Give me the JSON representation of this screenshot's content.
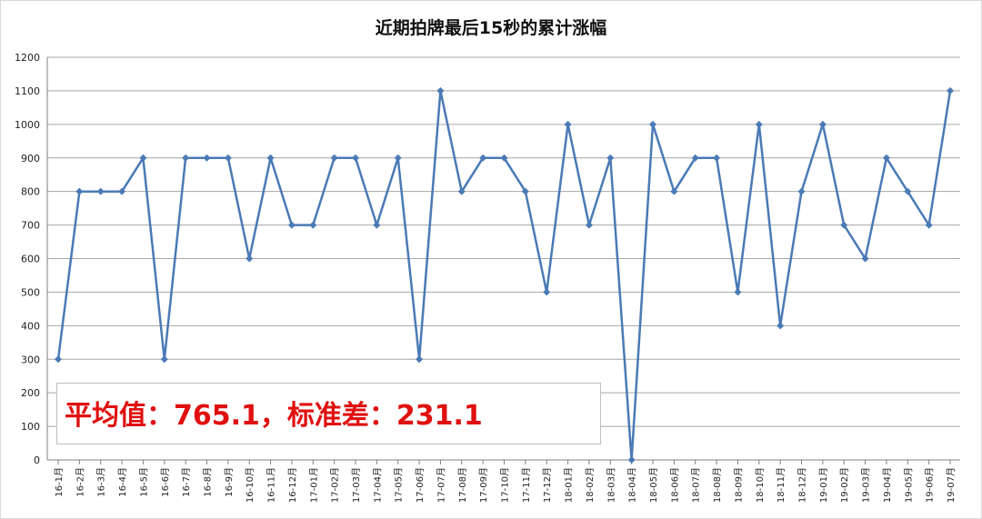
{
  "chart_data": {
    "type": "line",
    "title": "近期拍牌最后15秒的累计涨幅",
    "xlabel": "",
    "ylabel": "",
    "ylim": [
      0,
      1200
    ],
    "yticks": [
      0,
      100,
      200,
      300,
      400,
      500,
      600,
      700,
      800,
      900,
      1000,
      1100,
      1200
    ],
    "grid": "horizontal",
    "legend": "none",
    "categories": [
      "16-1月",
      "16-2月",
      "16-3月",
      "16-4月",
      "16-5月",
      "16-6月",
      "16-7月",
      "16-8月",
      "16-9月",
      "16-10月",
      "16-11月",
      "16-12月",
      "17-01月",
      "17-02月",
      "17-03月",
      "17-04月",
      "17-05月",
      "17-06月",
      "17-07月",
      "17-08月",
      "17-09月",
      "17-10月",
      "17-11月",
      "17-12月",
      "18-01月",
      "18-02月",
      "18-03月",
      "18-04月",
      "18-05月",
      "18-06月",
      "18-07月",
      "18-08月",
      "18-09月",
      "18-10月",
      "18-11月",
      "18-12月",
      "19-01月",
      "19-02月",
      "19-03月",
      "19-04月",
      "19-05月",
      "19-06月",
      "19-07月"
    ],
    "series": [
      {
        "values": [
          300,
          800,
          800,
          800,
          900,
          300,
          900,
          900,
          900,
          600,
          900,
          700,
          700,
          900,
          900,
          700,
          900,
          300,
          1100,
          800,
          900,
          900,
          800,
          500,
          1000,
          700,
          900,
          0,
          1000,
          800,
          900,
          900,
          500,
          1000,
          400,
          800,
          1000,
          700,
          600,
          900,
          800,
          700,
          1100
        ],
        "color": "#4a7ab5"
      }
    ]
  },
  "annotation": {
    "text": "平均值：765.1，标准差：231.1",
    "color": "#e01010"
  }
}
